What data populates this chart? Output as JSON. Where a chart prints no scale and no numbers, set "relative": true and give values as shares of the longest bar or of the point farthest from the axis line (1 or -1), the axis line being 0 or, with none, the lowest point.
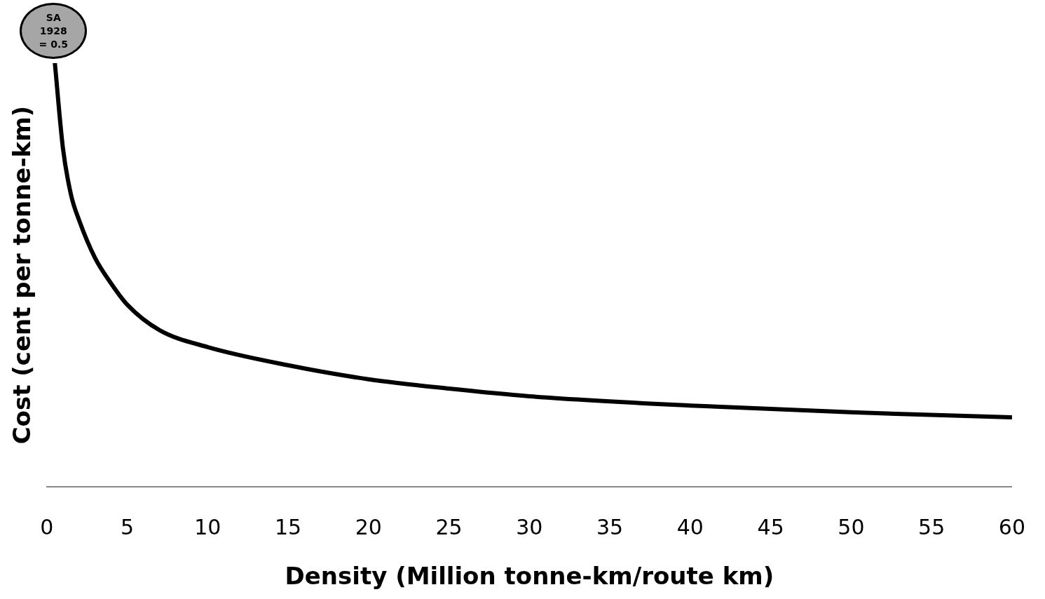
{
  "chart_data": {
    "type": "line",
    "relative": true,
    "xlabel": "Density (Million tonne-km/route km)",
    "ylabel": "Cost (cent per tonne-km)",
    "xlim": [
      0,
      60
    ],
    "xticks": [
      0,
      5,
      10,
      15,
      20,
      25,
      30,
      35,
      40,
      45,
      50,
      55,
      60
    ],
    "grid": false,
    "legend": false,
    "marker": "none",
    "line_style": "solid",
    "series": [
      {
        "color": "#000000",
        "x": [
          0.5,
          1,
          1.5,
          2,
          3,
          4,
          5,
          7,
          10,
          15,
          20,
          25,
          30,
          40,
          50,
          60
        ],
        "values": [
          1.0,
          0.8,
          0.69,
          0.63,
          0.54,
          0.48,
          0.43,
          0.37,
          0.33,
          0.287,
          0.254,
          0.232,
          0.214,
          0.192,
          0.176,
          0.164
        ]
      }
    ],
    "annotations": [
      {
        "text": "SA\n1928\n= 0.5",
        "x": 0.5,
        "y": 1.0
      }
    ]
  }
}
